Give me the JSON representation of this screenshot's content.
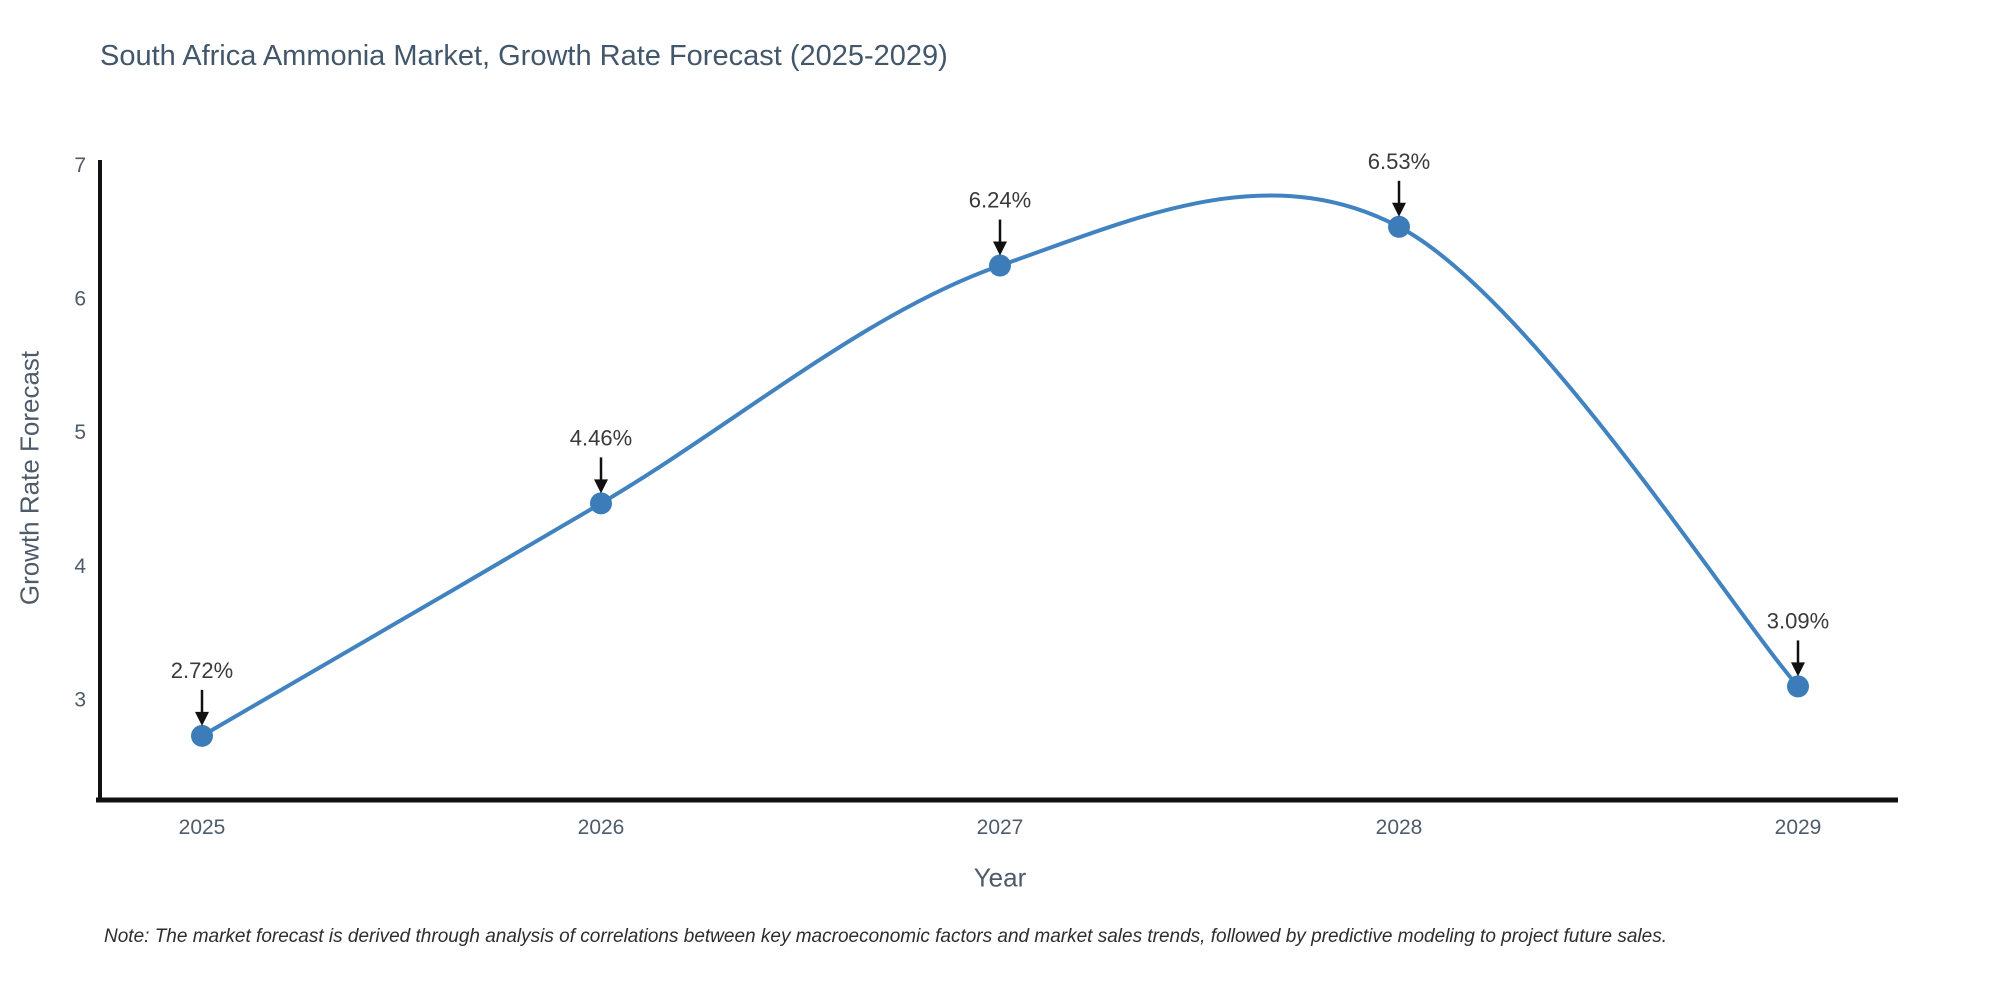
{
  "title": "South Africa Ammonia Market, Growth Rate Forecast (2025-2029)",
  "note": "Note: The market forecast is derived through analysis of correlations between key macroeconomic factors and market sales trends, followed by predictive modeling to project future sales.",
  "chart_data": {
    "type": "line",
    "line_shape": "spline",
    "title": "South Africa Ammonia Market, Growth Rate Forecast (2025-2029)",
    "xlabel": "Year",
    "ylabel": "Growth Rate Forecast",
    "x": [
      2025,
      2026,
      2027,
      2028,
      2029
    ],
    "values": [
      2.72,
      4.46,
      6.24,
      6.53,
      3.09
    ],
    "point_labels": [
      "2.72%",
      "4.46%",
      "6.24%",
      "6.53%",
      "3.09%"
    ],
    "xticks": [
      "2025",
      "2026",
      "2027",
      "2028",
      "2029"
    ],
    "yticks": [
      3,
      4,
      5,
      6,
      7
    ],
    "ylim": [
      2.24,
      7.03
    ],
    "grid": false,
    "legend": "none",
    "annotation_style": "value-label-with-down-arrow",
    "colors": {
      "line": "#4183c0",
      "marker": "#3c7cb8",
      "axis_line": "#111111",
      "tick_label": "#4e5b6a",
      "axis_title": "#4e5b6a",
      "chart_title": "#42576b",
      "annotation_text": "#3a3a3a",
      "annotation_arrow": "#111111",
      "background": "#ffffff"
    }
  }
}
